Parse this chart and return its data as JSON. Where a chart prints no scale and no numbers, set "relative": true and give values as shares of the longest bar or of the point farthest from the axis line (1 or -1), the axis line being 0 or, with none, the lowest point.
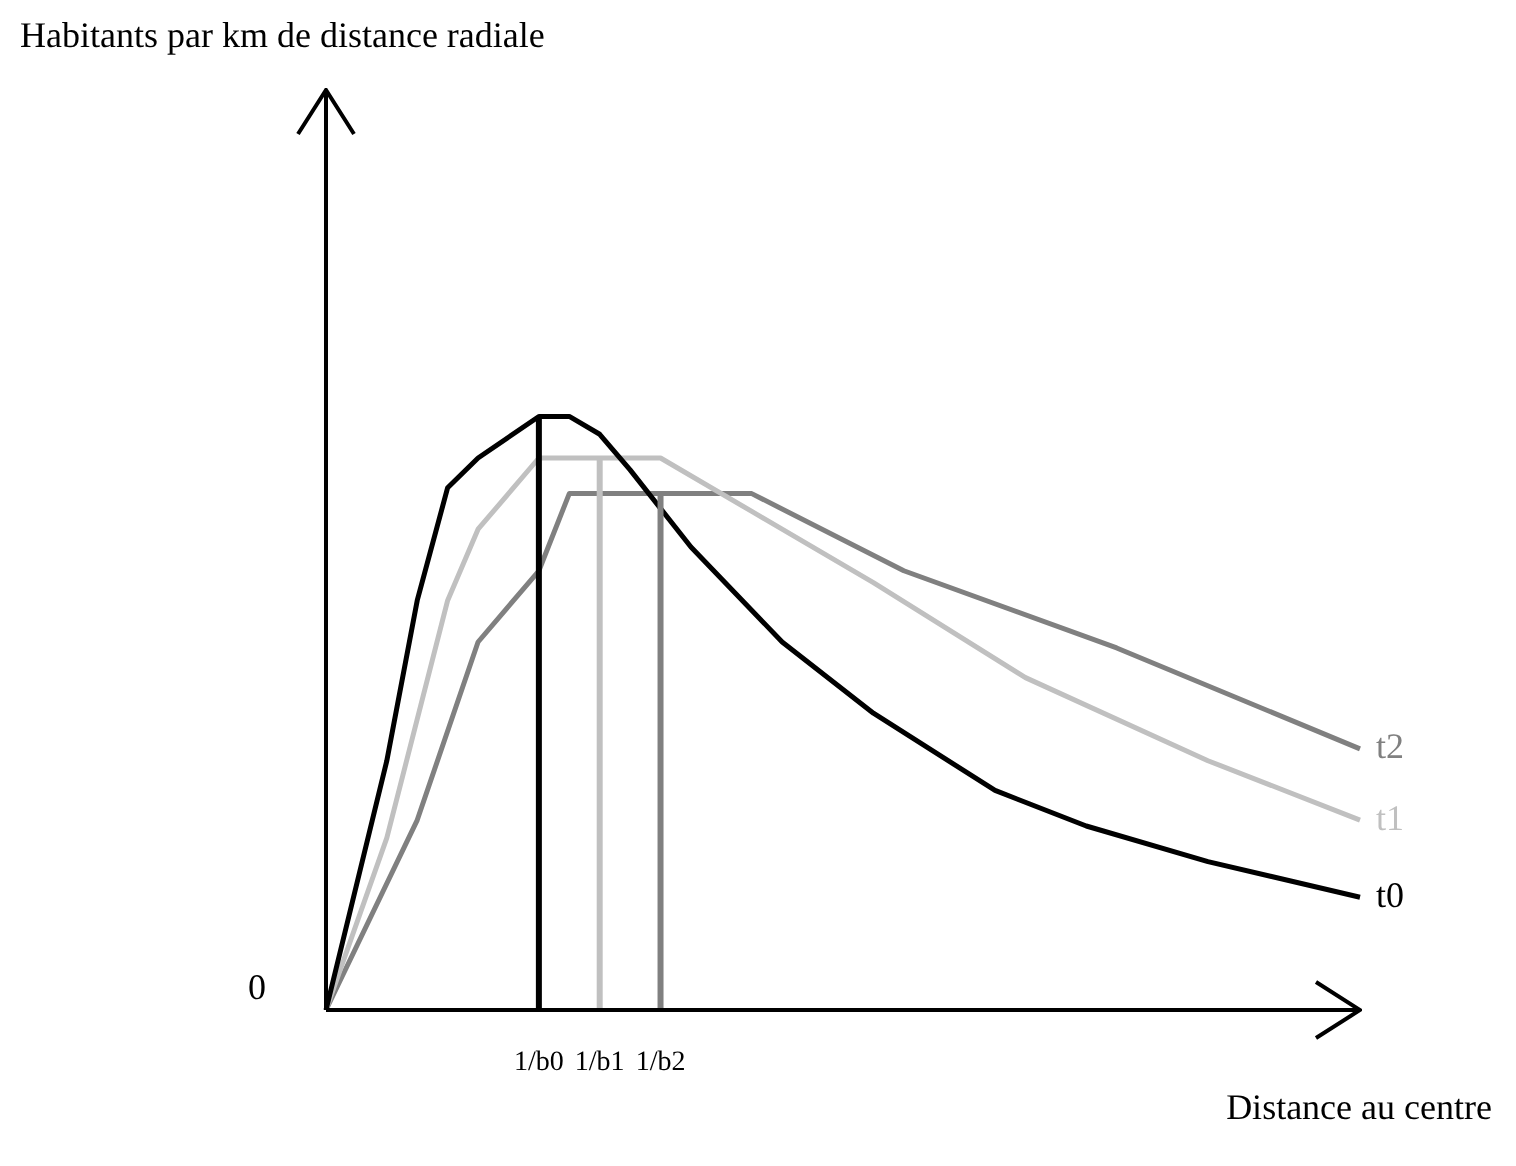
{
  "chart_data": {
    "type": "line",
    "relative": true,
    "xlabel": "Distance au centre",
    "annotations": [
      "Habitants par km de distance radiale",
      "0"
    ],
    "categories": [
      null,
      null,
      null,
      null,
      null,
      null,
      null,
      "1/b0",
      null,
      "1/b1",
      null,
      "1/b2",
      null,
      null,
      null,
      null,
      null,
      null,
      null,
      null,
      null,
      null,
      null,
      null,
      null,
      null,
      null,
      null,
      null,
      null,
      null,
      null,
      null,
      null,
      null
    ],
    "series": [
      {
        "name": "t0",
        "color": "#000000",
        "values": [
          0,
          null,
          0.42,
          0.69,
          0.88,
          0.93,
          null,
          1.0,
          1.0,
          0.97,
          0.91,
          null,
          0.78,
          null,
          null,
          0.62,
          null,
          null,
          0.5,
          null,
          null,
          null,
          0.37,
          null,
          null,
          0.31,
          null,
          null,
          null,
          0.25,
          null,
          null,
          null,
          null,
          0.19
        ]
      },
      {
        "name": "t1",
        "color": "#c0c0c0",
        "values": [
          0,
          null,
          0.29,
          null,
          0.69,
          0.81,
          null,
          0.93,
          null,
          0.93,
          null,
          0.93,
          null,
          null,
          0.84,
          null,
          null,
          null,
          0.72,
          null,
          null,
          null,
          null,
          0.56,
          null,
          null,
          null,
          null,
          null,
          0.42,
          null,
          null,
          null,
          null,
          0.32
        ]
      },
      {
        "name": "t2",
        "color": "#808080",
        "values": [
          0,
          null,
          null,
          0.32,
          null,
          0.62,
          null,
          0.74,
          0.87,
          null,
          null,
          0.87,
          null,
          null,
          0.87,
          null,
          null,
          null,
          null,
          0.74,
          null,
          null,
          null,
          null,
          null,
          null,
          0.61,
          null,
          null,
          null,
          null,
          null,
          null,
          null,
          0.44
        ]
      }
    ],
    "ref_lines": [
      {
        "axis": "x",
        "value": "1/b0",
        "color": "#000000"
      },
      {
        "axis": "x",
        "value": "1/b1",
        "color": "#c0c0c0"
      },
      {
        "axis": "x",
        "value": "1/b2",
        "color": "#808080"
      }
    ],
    "legend": false,
    "marker": "none",
    "line_style": "solid"
  }
}
